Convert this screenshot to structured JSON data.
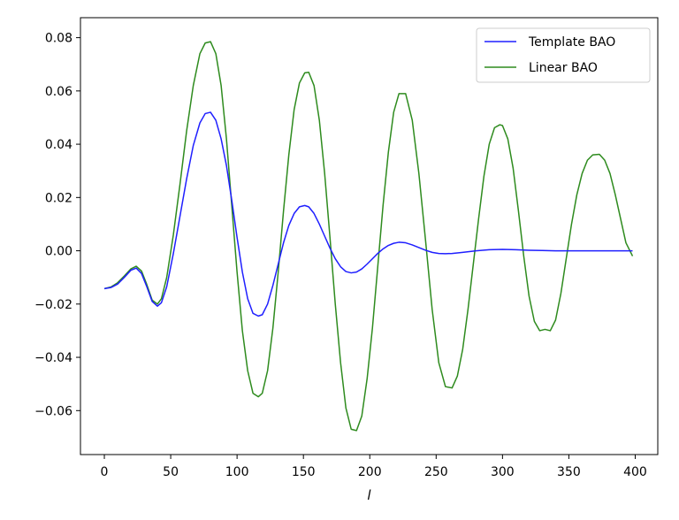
{
  "chart_data": {
    "type": "line",
    "title": "",
    "xlabel": "l",
    "ylabel": "",
    "xlim": [
      -18,
      417
    ],
    "ylim": [
      -0.0765,
      0.0875
    ],
    "xticks": [
      0,
      50,
      100,
      150,
      200,
      250,
      300,
      350,
      400
    ],
    "yticks": [
      -0.06,
      -0.04,
      -0.02,
      0.0,
      0.02,
      0.04,
      0.06,
      0.08
    ],
    "xtick_labels": [
      "0",
      "50",
      "100",
      "150",
      "200",
      "250",
      "300",
      "350",
      "400"
    ],
    "ytick_labels": [
      "−0.06",
      "−0.04",
      "−0.02",
      "0.00",
      "0.02",
      "0.04",
      "0.06",
      "0.08"
    ],
    "grid": false,
    "legend_position": "top-right",
    "series": [
      {
        "name": "Template BAO",
        "color": "#1f1fff",
        "x": [
          0,
          5,
          10,
          15,
          20,
          24,
          28,
          32,
          36,
          40,
          43,
          47,
          52,
          57,
          62,
          67,
          72,
          76,
          80,
          84,
          88,
          92,
          96,
          100,
          104,
          108,
          112,
          116,
          119,
          123,
          127,
          131,
          135,
          139,
          143,
          147,
          151,
          154,
          158,
          162,
          166,
          170,
          174,
          178,
          182,
          186,
          190,
          194,
          198,
          202,
          206,
          210,
          214,
          218,
          222,
          227,
          232,
          237,
          242,
          247,
          252,
          257,
          262,
          270,
          280,
          290,
          300,
          310,
          320,
          330,
          340,
          350,
          360,
          370,
          380,
          390,
          398
        ],
        "y": [
          -0.0142,
          -0.0138,
          -0.0125,
          -0.01,
          -0.0073,
          -0.0065,
          -0.0085,
          -0.0135,
          -0.019,
          -0.0208,
          -0.0195,
          -0.0135,
          -0.001,
          0.013,
          0.027,
          0.0395,
          0.048,
          0.0515,
          0.052,
          0.049,
          0.042,
          0.032,
          0.019,
          0.005,
          -0.008,
          -0.018,
          -0.0235,
          -0.0245,
          -0.024,
          -0.02,
          -0.013,
          -0.005,
          0.003,
          0.0095,
          0.014,
          0.0165,
          0.017,
          0.0165,
          0.014,
          0.01,
          0.0055,
          0.001,
          -0.003,
          -0.006,
          -0.0078,
          -0.0083,
          -0.008,
          -0.0068,
          -0.005,
          -0.003,
          -0.001,
          0.0007,
          0.002,
          0.0028,
          0.0032,
          0.003,
          0.0022,
          0.0012,
          0.0002,
          -0.0006,
          -0.001,
          -0.0011,
          -0.001,
          -0.0006,
          0.0,
          0.0004,
          0.0005,
          0.0004,
          0.0002,
          0.0001,
          0.0,
          0.0,
          0.0,
          0.0,
          0.0,
          0.0,
          0.0
        ]
      },
      {
        "name": "Linear BAO",
        "color": "#2e8b1e",
        "x": [
          0,
          5,
          10,
          15,
          20,
          24,
          28,
          32,
          36,
          40,
          43,
          47,
          52,
          57,
          62,
          67,
          72,
          76,
          80,
          84,
          88,
          92,
          96,
          100,
          104,
          108,
          112,
          116,
          119,
          123,
          127,
          131,
          135,
          139,
          143,
          147,
          151,
          154,
          158,
          162,
          166,
          170,
          174,
          178,
          182,
          186,
          190,
          194,
          198,
          202,
          206,
          210,
          214,
          218,
          222,
          227,
          232,
          237,
          242,
          247,
          252,
          257,
          262,
          266,
          270,
          274,
          278,
          282,
          286,
          290,
          294,
          298,
          300,
          304,
          308,
          312,
          316,
          320,
          324,
          328,
          332,
          336,
          340,
          344,
          348,
          352,
          356,
          360,
          364,
          368,
          373,
          377,
          381,
          385,
          389,
          393,
          398
        ],
        "y": [
          -0.0142,
          -0.0136,
          -0.012,
          -0.0095,
          -0.0068,
          -0.0058,
          -0.0076,
          -0.0127,
          -0.0185,
          -0.02,
          -0.018,
          -0.01,
          0.006,
          0.025,
          0.045,
          0.062,
          0.074,
          0.078,
          0.0785,
          0.074,
          0.062,
          0.042,
          0.017,
          -0.008,
          -0.03,
          -0.045,
          -0.0535,
          -0.0548,
          -0.0535,
          -0.045,
          -0.029,
          -0.008,
          0.015,
          0.036,
          0.053,
          0.063,
          0.0668,
          0.067,
          0.062,
          0.049,
          0.029,
          0.005,
          -0.02,
          -0.042,
          -0.059,
          -0.067,
          -0.0675,
          -0.062,
          -0.048,
          -0.029,
          -0.006,
          0.017,
          0.037,
          0.052,
          0.059,
          0.059,
          0.049,
          0.029,
          0.004,
          -0.022,
          -0.042,
          -0.051,
          -0.0515,
          -0.047,
          -0.037,
          -0.022,
          -0.005,
          0.012,
          0.028,
          0.04,
          0.0462,
          0.0473,
          0.047,
          0.042,
          0.031,
          0.015,
          -0.002,
          -0.017,
          -0.0265,
          -0.03,
          -0.0295,
          -0.03,
          -0.026,
          -0.016,
          -0.003,
          0.01,
          0.021,
          0.029,
          0.034,
          0.036,
          0.0362,
          0.034,
          0.029,
          0.021,
          0.012,
          0.003,
          -0.002
        ]
      }
    ]
  }
}
